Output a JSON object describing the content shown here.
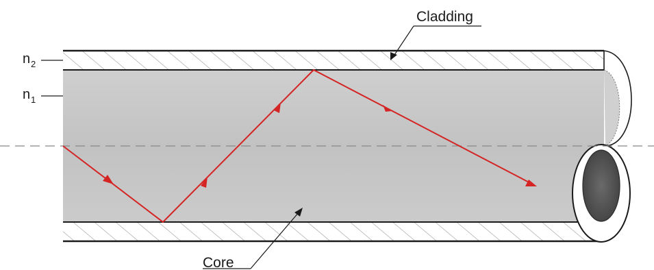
{
  "labels": {
    "cladding": "Cladding",
    "core": "Core",
    "n2_base": "n",
    "n2_sub": "2",
    "n1_base": "n",
    "n1_sub": "1"
  },
  "colors": {
    "ray": "#d42424",
    "core_fill": "#c8c8c8",
    "cladding_fill": "#ffffff",
    "outline": "#1a1a1a",
    "hatch": "#9a9a9a",
    "axis": "#888888",
    "end_core": "#555555"
  }
}
